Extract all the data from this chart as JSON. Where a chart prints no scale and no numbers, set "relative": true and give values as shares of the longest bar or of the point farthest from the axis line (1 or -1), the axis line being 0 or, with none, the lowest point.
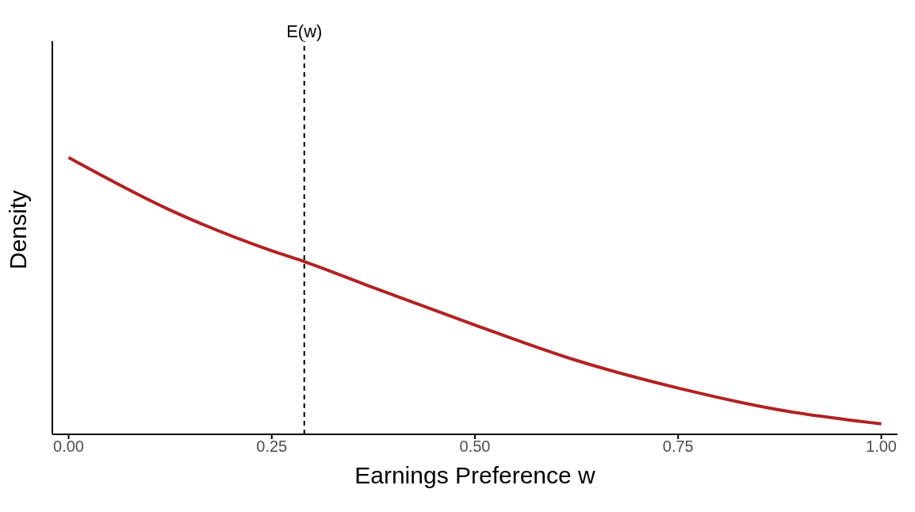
{
  "chart_data": {
    "type": "line",
    "relative": true,
    "xlabel": "Earnings Preference w",
    "ylabel": "Density",
    "x": [
      0,
      0.125,
      0.25,
      0.29,
      0.375,
      0.5,
      0.625,
      0.75,
      0.875,
      1
    ],
    "series": [
      {
        "color": "#b22222",
        "values": [
          1,
          0.81,
          0.663,
          0.624,
          0.53,
          0.395,
          0.267,
          0.167,
          0.088,
          0.038
        ]
      }
    ],
    "xlim": [
      -0.02,
      1.02
    ],
    "xticks": [
      {
        "value": 0,
        "label": "0.00"
      },
      {
        "value": 0.25,
        "label": "0.25"
      },
      {
        "value": 0.5,
        "label": "0.50"
      },
      {
        "value": 0.75,
        "label": "0.75"
      },
      {
        "value": 1,
        "label": "1.00"
      }
    ],
    "ref_lines": [
      {
        "axis": "x",
        "value": 0.29,
        "label": "E(w)",
        "color": "#000000",
        "line_style": "dashed"
      }
    ],
    "grid": false,
    "legend": false,
    "marker": "none",
    "line_style": "solid"
  }
}
